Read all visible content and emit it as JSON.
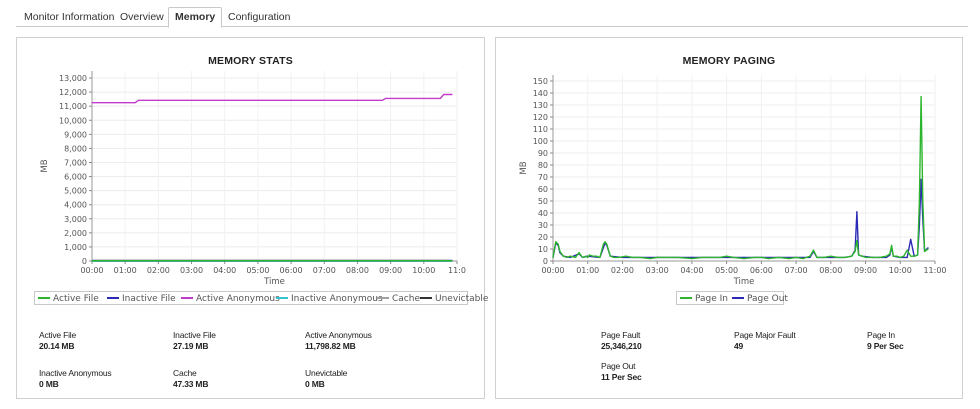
{
  "tabs": [
    {
      "label": "Monitor Information",
      "active": false
    },
    {
      "label": "Overview",
      "active": false
    },
    {
      "label": "Memory",
      "active": true
    },
    {
      "label": "Configuration",
      "active": false
    }
  ],
  "memory_stats": {
    "title": "MEMORY STATS",
    "legend": [
      {
        "label": "Active File",
        "color": "#2db52d"
      },
      {
        "label": "Inactive File",
        "color": "#2a2ab5"
      },
      {
        "label": "Active Anonymous",
        "color": "#c23ccc"
      },
      {
        "label": "Inactive Anonymous",
        "color": "#33c3cf"
      },
      {
        "label": "Cache",
        "color": "#a0a0a0"
      },
      {
        "label": "Unevictable",
        "color": "#333333"
      }
    ],
    "stats": [
      {
        "label": "Active File",
        "value": "20.14 MB"
      },
      {
        "label": "Inactive File",
        "value": "27.19 MB"
      },
      {
        "label": "Active Anonymous",
        "value": "11,798.82 MB"
      },
      {
        "label": "Inactive Anonymous",
        "value": "0 MB"
      },
      {
        "label": "Cache",
        "value": "47.33 MB"
      },
      {
        "label": "Unevictable",
        "value": "0 MB"
      }
    ]
  },
  "memory_paging": {
    "title": "MEMORY PAGING",
    "legend": [
      {
        "label": "Page In",
        "color": "#2db52d"
      },
      {
        "label": "Page Out",
        "color": "#2a2ab5"
      }
    ],
    "stats": [
      {
        "label": "Page Fault",
        "value": "25,346,210"
      },
      {
        "label": "Page Major Fault",
        "value": "49"
      },
      {
        "label": "Page In",
        "value": "9 Per Sec"
      },
      {
        "label": "Page Out",
        "value": "11 Per Sec"
      }
    ]
  },
  "chart_data": [
    {
      "type": "line",
      "title": "MEMORY STATS",
      "xlabel": "Time",
      "ylabel": "MB",
      "ylim": [
        0,
        13500
      ],
      "yticks": [
        "0",
        "1,000",
        "2,000",
        "3,000",
        "4,000",
        "5,000",
        "6,000",
        "7,000",
        "8,000",
        "9,000",
        "10,000",
        "11,000",
        "12,000",
        "13,000"
      ],
      "xticks": [
        "00:00",
        "01:00",
        "02:00",
        "03:00",
        "04:00",
        "05:00",
        "06:00",
        "07:00",
        "08:00",
        "09:00",
        "10:00",
        "11:0"
      ],
      "grid": true,
      "legend_position": "bottom",
      "series": [
        {
          "name": "Active Anonymous",
          "color": "#c23ccc",
          "x": [
            0,
            1.3,
            1.4,
            8.75,
            8.85,
            10.5,
            10.6,
            10.85
          ],
          "y": [
            11250,
            11250,
            11420,
            11420,
            11550,
            11550,
            11830,
            11830
          ]
        },
        {
          "name": "Active File",
          "color": "#2db52d",
          "x": [
            0,
            10.85
          ],
          "y": [
            20,
            20
          ]
        },
        {
          "name": "Inactive File",
          "color": "#2a2ab5",
          "x": [
            0,
            10.85
          ],
          "y": [
            27,
            27
          ]
        },
        {
          "name": "Inactive Anonymous",
          "color": "#33c3cf",
          "x": [
            0,
            10.85
          ],
          "y": [
            0,
            0
          ]
        },
        {
          "name": "Cache",
          "color": "#a0a0a0",
          "x": [
            0,
            10.85
          ],
          "y": [
            47,
            47
          ]
        },
        {
          "name": "Unevictable",
          "color": "#333333",
          "x": [
            0,
            10.85
          ],
          "y": [
            0,
            0
          ]
        }
      ]
    },
    {
      "type": "line",
      "title": "MEMORY PAGING",
      "xlabel": "Time",
      "ylabel": "MB",
      "ylim": [
        0,
        155
      ],
      "yticks": [
        "0",
        "10",
        "20",
        "30",
        "40",
        "50",
        "60",
        "70",
        "80",
        "90",
        "100",
        "110",
        "120",
        "130",
        "140",
        "150"
      ],
      "xticks": [
        "00:00",
        "01:00",
        "02:00",
        "03:00",
        "04:00",
        "05:00",
        "06:00",
        "07:00",
        "08:00",
        "09:00",
        "10:00",
        "11:00"
      ],
      "grid": true,
      "legend_position": "bottom",
      "series": [
        {
          "name": "Page In",
          "color": "#2db52d",
          "x": [
            0,
            0.08,
            0.15,
            0.2,
            0.3,
            0.4,
            0.5,
            0.65,
            0.75,
            0.85,
            0.95,
            1.0,
            1.05,
            1.15,
            1.25,
            1.35,
            1.45,
            1.5,
            1.55,
            1.65,
            1.75,
            1.9,
            2.1,
            2.3,
            2.5,
            2.8,
            3.0,
            3.3,
            3.6,
            4.0,
            4.3,
            4.5,
            4.8,
            5.0,
            5.2,
            5.5,
            5.8,
            6.0,
            6.2,
            6.5,
            6.8,
            7.0,
            7.2,
            7.4,
            7.5,
            7.6,
            7.8,
            8.0,
            8.2,
            8.4,
            8.6,
            8.7,
            8.75,
            8.8,
            8.9,
            9.0,
            9.2,
            9.4,
            9.6,
            9.7,
            9.75,
            9.8,
            9.9,
            10.0,
            10.1,
            10.2,
            10.3,
            10.4,
            10.5,
            10.55,
            10.6,
            10.65,
            10.7,
            10.8
          ],
          "y": [
            3,
            16,
            14,
            8,
            4,
            3,
            4,
            3,
            7,
            3,
            4,
            3,
            5,
            4,
            4,
            3,
            14,
            16,
            14,
            4,
            3,
            3,
            4,
            3,
            3,
            2,
            3,
            3,
            3,
            2,
            3,
            3,
            3,
            4,
            3,
            2,
            3,
            3,
            2,
            3,
            2,
            3,
            2,
            4,
            9,
            3,
            3,
            4,
            3,
            3,
            4,
            8,
            17,
            5,
            4,
            3,
            3,
            3,
            4,
            6,
            13,
            4,
            4,
            3,
            4,
            9,
            4,
            4,
            5,
            50,
            137,
            50,
            8,
            10
          ]
        },
        {
          "name": "Page Out",
          "color": "#2a2ab5",
          "x": [
            0,
            0.08,
            0.15,
            0.2,
            0.3,
            0.5,
            0.75,
            0.85,
            1.0,
            1.35,
            1.5,
            1.55,
            1.65,
            2.0,
            2.5,
            3.0,
            3.5,
            4.0,
            4.5,
            5.0,
            5.5,
            6.0,
            6.5,
            7.0,
            7.4,
            7.5,
            7.6,
            8.0,
            8.4,
            8.6,
            8.7,
            8.75,
            8.8,
            8.9,
            9.2,
            9.6,
            9.7,
            9.75,
            9.8,
            10.0,
            10.2,
            10.3,
            10.4,
            10.5,
            10.55,
            10.6,
            10.65,
            10.7,
            10.8
          ],
          "y": [
            3,
            15,
            13,
            7,
            4,
            3,
            6,
            3,
            4,
            3,
            15,
            13,
            4,
            3,
            3,
            3,
            3,
            3,
            3,
            3,
            3,
            3,
            3,
            3,
            3,
            8,
            3,
            3,
            3,
            4,
            9,
            41,
            5,
            4,
            3,
            3,
            5,
            12,
            4,
            3,
            3,
            18,
            4,
            5,
            30,
            68,
            35,
            8,
            11
          ]
        }
      ]
    }
  ]
}
